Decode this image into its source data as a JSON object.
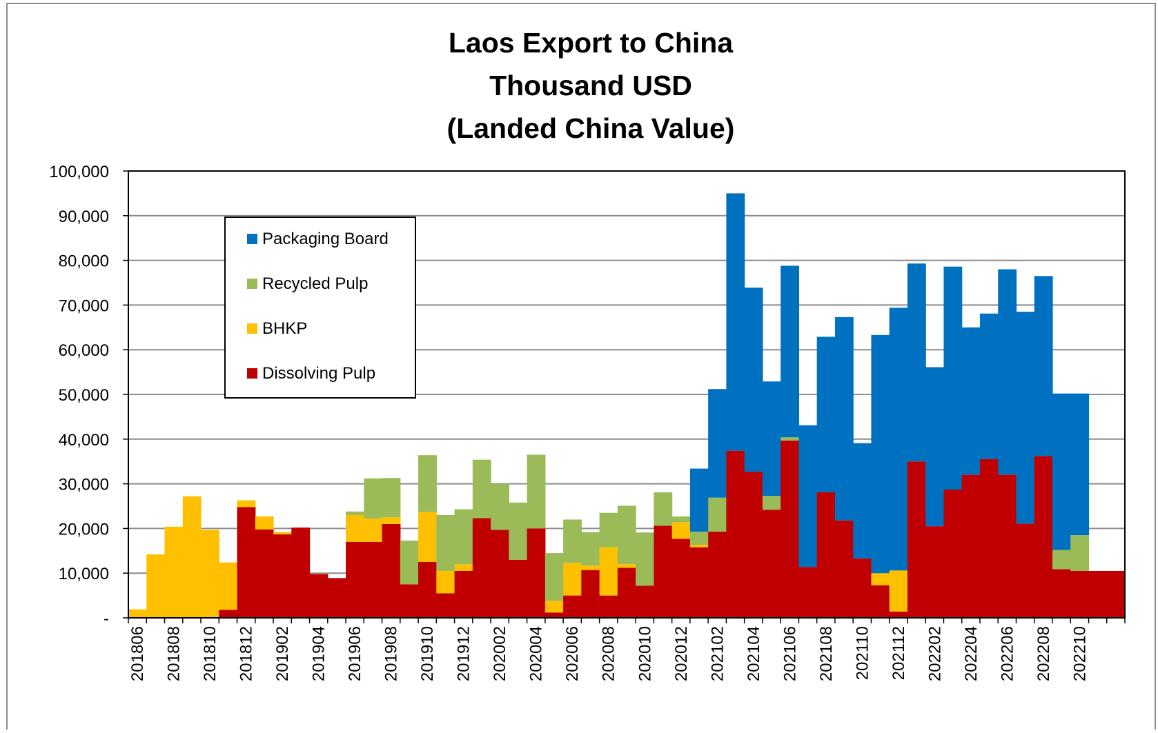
{
  "chart_data": {
    "type": "bar",
    "stacked": true,
    "title_lines": [
      "Laos Export to China",
      "Thousand USD",
      "(Landed China Value)"
    ],
    "xlabel": "",
    "ylabel": "",
    "ylim": [
      0,
      100000
    ],
    "y_ticks": [
      {
        "value": 0,
        "label": "-"
      },
      {
        "value": 10000,
        "label": "10,000"
      },
      {
        "value": 20000,
        "label": "20,000"
      },
      {
        "value": 30000,
        "label": "30,000"
      },
      {
        "value": 40000,
        "label": "40,000"
      },
      {
        "value": 50000,
        "label": "50,000"
      },
      {
        "value": 60000,
        "label": "60,000"
      },
      {
        "value": 70000,
        "label": "70,000"
      },
      {
        "value": 80000,
        "label": "80,000"
      },
      {
        "value": 90000,
        "label": "90,000"
      },
      {
        "value": 100000,
        "label": "100,000"
      }
    ],
    "grid": true,
    "legend_position": "top-left",
    "legend_order": [
      "Packaging Board",
      "Recycled Pulp",
      "BHKP",
      "Dissolving Pulp"
    ],
    "categories": [
      "201806",
      "201807",
      "201808",
      "201809",
      "201810",
      "201811",
      "201812",
      "201901",
      "201902",
      "201903",
      "201904",
      "201905",
      "201906",
      "201907",
      "201908",
      "201909",
      "201910",
      "201911",
      "201912",
      "202001",
      "202002",
      "202003",
      "202004",
      "202005",
      "202006",
      "202007",
      "202008",
      "202009",
      "202010",
      "202011",
      "202012",
      "202101",
      "202102",
      "202103",
      "202104",
      "202105",
      "202106",
      "202107",
      "202108",
      "202109",
      "202110",
      "202111",
      "202112",
      "202201",
      "202202",
      "202203",
      "202204",
      "202205",
      "202206",
      "202207",
      "202208",
      "202209",
      "202210",
      "202211",
      "202212"
    ],
    "x_tick_labels": [
      "201806",
      "201808",
      "201810",
      "201812",
      "201902",
      "201904",
      "201906",
      "201908",
      "201910",
      "201912",
      "202002",
      "202004",
      "202006",
      "202008",
      "202010",
      "202012",
      "202102",
      "202104",
      "202106",
      "202108",
      "202110",
      "202112",
      "202202",
      "202204",
      "202206",
      "202208",
      "202210"
    ],
    "series": [
      {
        "name": "Dissolving Pulp",
        "color": "#C00000",
        "values": [
          0,
          0,
          0,
          0,
          0,
          1800,
          24800,
          19800,
          18700,
          20200,
          9800,
          8900,
          17000,
          17000,
          21000,
          7500,
          12500,
          5500,
          10500,
          22300,
          19700,
          13000,
          20000,
          1200,
          5000,
          10700,
          5000,
          11200,
          7200,
          20600,
          17700,
          15800,
          19300,
          37400,
          32700,
          24200,
          39700,
          11400,
          28100,
          21800,
          13300,
          7300,
          1400,
          35000,
          20500,
          28700,
          32000,
          35500,
          32000,
          21100,
          36200,
          10900,
          10500,
          10500,
          10500
        ]
      },
      {
        "name": "BHKP",
        "color": "#FFC000",
        "values": [
          1900,
          14200,
          20400,
          27200,
          19700,
          10600,
          1500,
          2900,
          500,
          0,
          0,
          0,
          6000,
          5200,
          1500,
          0,
          11200,
          5000,
          1500,
          0,
          0,
          0,
          0,
          2600,
          7300,
          1000,
          10800,
          800,
          0,
          0,
          3700,
          500,
          0,
          0,
          0,
          0,
          0,
          0,
          0,
          0,
          0,
          2700,
          9200,
          0,
          0,
          0,
          0,
          0,
          0,
          0,
          0,
          0,
          0,
          0,
          0
        ]
      },
      {
        "name": "Recycled Pulp",
        "color": "#9BBB59",
        "values": [
          0,
          0,
          0,
          0,
          0,
          0,
          0,
          0,
          0,
          0,
          0,
          0,
          800,
          9000,
          8800,
          9800,
          12700,
          12500,
          12300,
          13100,
          10300,
          12800,
          16500,
          10700,
          9700,
          7500,
          7700,
          13100,
          11900,
          7500,
          1300,
          3000,
          7600,
          0,
          0,
          3100,
          700,
          0,
          0,
          0,
          0,
          0,
          0,
          0,
          0,
          0,
          0,
          0,
          0,
          0,
          0,
          4300,
          8000,
          0,
          0
        ]
      },
      {
        "name": "Packaging Board",
        "color": "#0070C0",
        "values": [
          0,
          0,
          0,
          0,
          0,
          0,
          0,
          0,
          0,
          0,
          0,
          0,
          0,
          0,
          0,
          0,
          0,
          0,
          0,
          0,
          0,
          0,
          0,
          0,
          0,
          0,
          0,
          0,
          0,
          0,
          0,
          14100,
          24300,
          57600,
          41200,
          25600,
          38400,
          31700,
          34800,
          45500,
          25800,
          53300,
          58800,
          44300,
          35600,
          49900,
          33000,
          32600,
          46000,
          47400,
          40300,
          35000,
          31700,
          0,
          0
        ]
      }
    ]
  }
}
